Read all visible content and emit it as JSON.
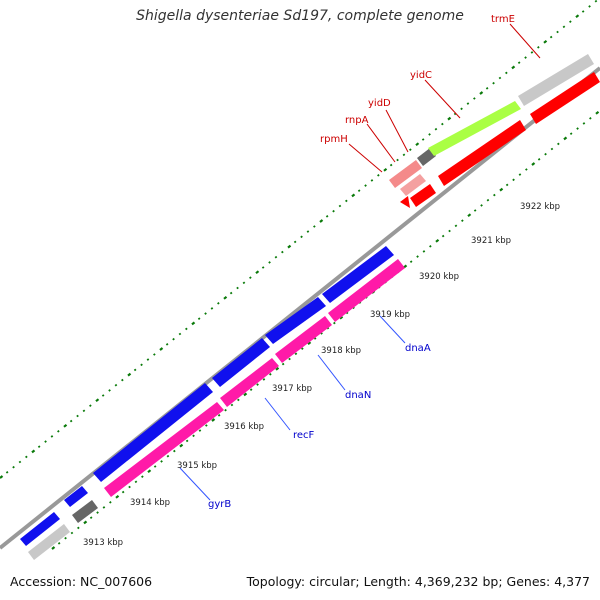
{
  "title": "Shigella dysenteriae Sd197, complete genome",
  "footer": {
    "accession": "Accession: NC_007606",
    "summary": "Topology: circular; Length: 4,369,232 bp; Genes: 4,377"
  },
  "ticks": [
    "3913 kbp",
    "3914 kbp",
    "3915 kbp",
    "3916 kbp",
    "3917 kbp",
    "3918 kbp",
    "3919 kbp",
    "3920 kbp",
    "3921 kbp",
    "3922 kbp"
  ],
  "genes": [
    {
      "name": "gyrB",
      "color": "#0000cc"
    },
    {
      "name": "recF",
      "color": "#0000cc"
    },
    {
      "name": "dnaN",
      "color": "#0000cc"
    },
    {
      "name": "dnaA",
      "color": "#0000cc"
    },
    {
      "name": "rpmH",
      "color": "#cc0000"
    },
    {
      "name": "rnpA",
      "color": "#cc0000"
    },
    {
      "name": "yidD",
      "color": "#cc0000"
    },
    {
      "name": "yidC",
      "color": "#cc0000"
    },
    {
      "name": "trmE",
      "color": "#cc0000"
    }
  ],
  "colors": {
    "forward_cds": "#ff0000",
    "reverse_cds": "#1010ee",
    "rna_pink": "#ff1aa8",
    "yidC_green": "#aaff44",
    "gray": "#c8c8c8",
    "dark_gray": "#666666",
    "tick_green": "#0a7a0a"
  }
}
